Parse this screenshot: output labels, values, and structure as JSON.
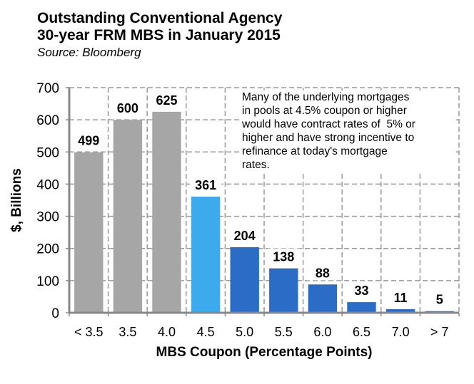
{
  "chart_data": {
    "type": "bar",
    "title": "Outstanding Conventional Agency 30-year FRM MBS in January 2015",
    "title_lines": [
      "Outstanding Conventional Agency",
      "30-year FRM MBS in January 2015"
    ],
    "subtitle": "Source: Bloomberg",
    "xlabel": "MBS Coupon (Percentage Points)",
    "ylabel": "$, Billions",
    "ylim": [
      0,
      700
    ],
    "yticks": [
      0,
      100,
      200,
      300,
      400,
      500,
      600,
      700
    ],
    "grid": true,
    "categories": [
      "< 3.5",
      "3.5",
      "4.0",
      "4.5",
      "5.0",
      "5.5",
      "6.0",
      "6.5",
      "7.0",
      "> 7"
    ],
    "values": [
      499,
      600,
      625,
      361,
      204,
      138,
      88,
      33,
      11,
      5
    ],
    "data_labels": [
      "499",
      "600",
      "625",
      "361",
      "204",
      "138",
      "88",
      "33",
      "11",
      "5"
    ],
    "bar_colors": [
      "#a6a6a6",
      "#a6a6a6",
      "#a6a6a6",
      "#3daaee",
      "#2a6cc6",
      "#2a6cc6",
      "#2a6cc6",
      "#2a6cc6",
      "#2a6cc6",
      "#2a6cc6"
    ],
    "annotation": "Many of the underlying mortgages in pools at 4.5% coupon or higher would have contract rates of  5% or higher and have strong incentive to refinance at today's mortgage rates.",
    "annotation_lines": [
      "Many of the underlying mortgages",
      "in pools at 4.5% coupon or higher",
      "would have contract rates of  5% or",
      "higher and have strong incentive to",
      "refinance at today's mortgage",
      "rates."
    ]
  }
}
